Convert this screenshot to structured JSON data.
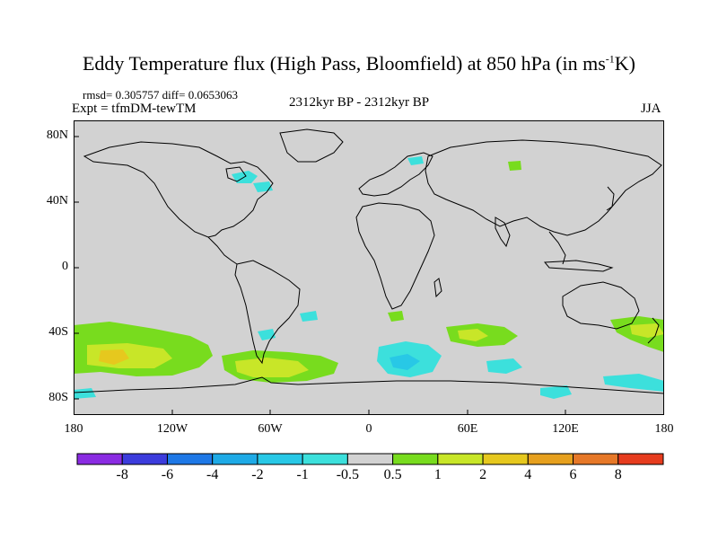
{
  "title": {
    "main": "Eddy Temperature flux (High Pass, Bloomfield) at 850 hPa (in ms",
    "sup": "-1",
    "tail": "K)"
  },
  "stats": "rmsd= 0.305757 diff= 0.0653063",
  "experiment": "Expt = tfmDM-tewTM",
  "period": "2312kyr BP - 2312kyr BP",
  "season": "JJA",
  "lat_labels": [
    "80N",
    "40N",
    "0",
    "40S",
    "80S"
  ],
  "lon_labels": [
    "180",
    "120W",
    "60W",
    "0",
    "60E",
    "120E",
    "180"
  ],
  "colorbar": {
    "labels": [
      "-8",
      "-6",
      "-4",
      "-2",
      "-1",
      "-0.5",
      "0.5",
      "1",
      "2",
      "4",
      "6",
      "8"
    ],
    "colors": [
      "#8a2be2",
      "#3c3cdc",
      "#1e78e6",
      "#1eaae6",
      "#28c8e6",
      "#3ce0dc",
      "#d2d2d2",
      "#78dc1e",
      "#c8e628",
      "#e6c81e",
      "#e6a01e",
      "#e67828",
      "#e63c1e"
    ]
  },
  "map_colors": {
    "ocean": "#d2d2d2",
    "coast": "#000000"
  }
}
